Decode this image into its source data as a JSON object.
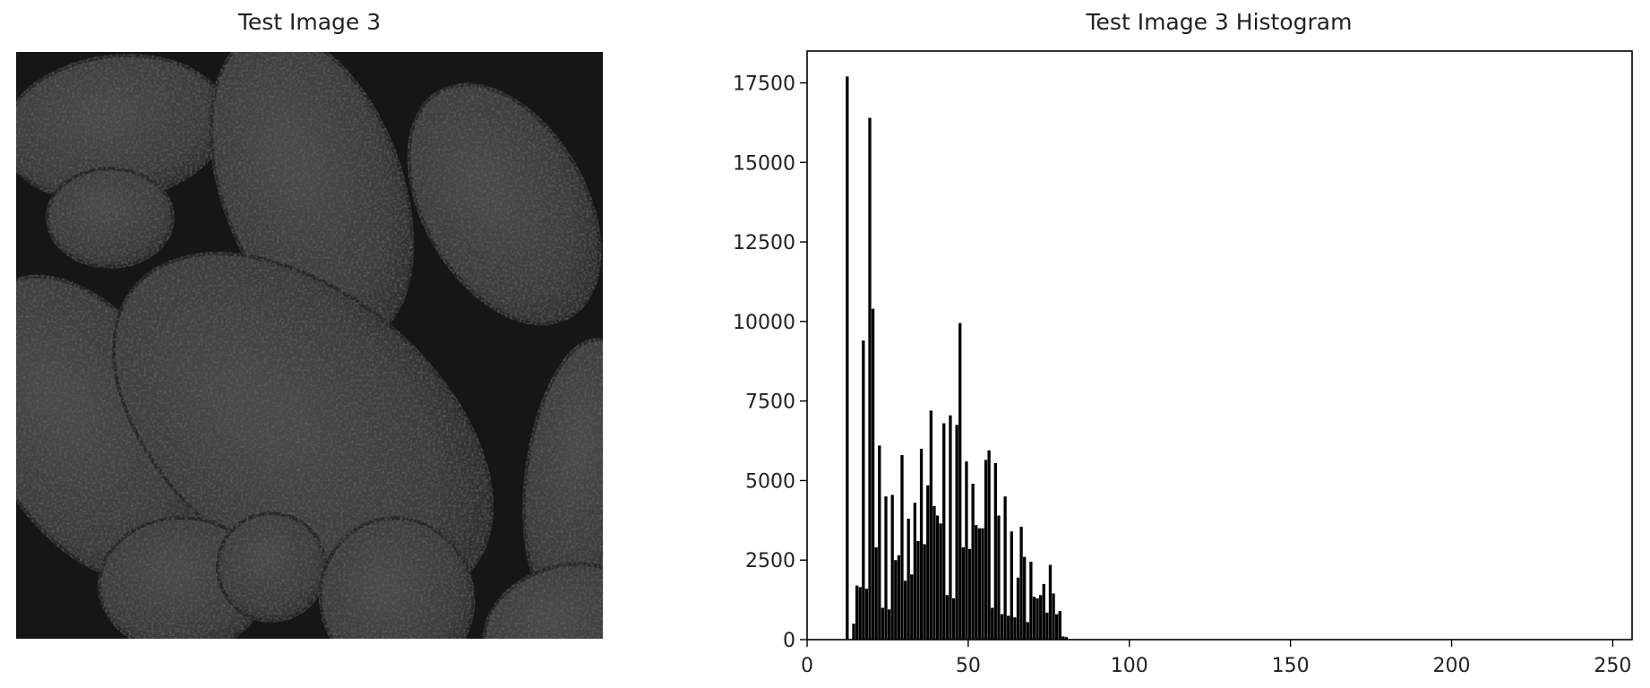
{
  "left_panel": {
    "title": "Test Image 3"
  },
  "chart_data": {
    "type": "bar",
    "title": "Test Image 3 Histogram",
    "xlabel": "",
    "ylabel": "",
    "xlim": [
      0,
      256
    ],
    "ylim": [
      0,
      18500
    ],
    "xticks": [
      0,
      50,
      100,
      150,
      200,
      250
    ],
    "yticks": [
      0,
      2500,
      5000,
      7500,
      10000,
      12500,
      15000,
      17500
    ],
    "grid": false,
    "bar_color": "#000000",
    "bins": [
      {
        "x": 12,
        "y": 17700
      },
      {
        "x": 14,
        "y": 500
      },
      {
        "x": 15,
        "y": 1700
      },
      {
        "x": 16,
        "y": 1650
      },
      {
        "x": 17,
        "y": 9400
      },
      {
        "x": 18,
        "y": 1600
      },
      {
        "x": 19,
        "y": 16400
      },
      {
        "x": 20,
        "y": 10400
      },
      {
        "x": 21,
        "y": 2900
      },
      {
        "x": 22,
        "y": 6100
      },
      {
        "x": 23,
        "y": 1000
      },
      {
        "x": 24,
        "y": 4500
      },
      {
        "x": 25,
        "y": 950
      },
      {
        "x": 26,
        "y": 4550
      },
      {
        "x": 27,
        "y": 2500
      },
      {
        "x": 28,
        "y": 2650
      },
      {
        "x": 29,
        "y": 5800
      },
      {
        "x": 30,
        "y": 1850
      },
      {
        "x": 31,
        "y": 3800
      },
      {
        "x": 32,
        "y": 2050
      },
      {
        "x": 33,
        "y": 4300
      },
      {
        "x": 34,
        "y": 3100
      },
      {
        "x": 35,
        "y": 6000
      },
      {
        "x": 36,
        "y": 3000
      },
      {
        "x": 37,
        "y": 4850
      },
      {
        "x": 38,
        "y": 7200
      },
      {
        "x": 39,
        "y": 4200
      },
      {
        "x": 40,
        "y": 3900
      },
      {
        "x": 41,
        "y": 3650
      },
      {
        "x": 42,
        "y": 6800
      },
      {
        "x": 43,
        "y": 1400
      },
      {
        "x": 44,
        "y": 7050
      },
      {
        "x": 45,
        "y": 1300
      },
      {
        "x": 46,
        "y": 6750
      },
      {
        "x": 47,
        "y": 9950
      },
      {
        "x": 48,
        "y": 2900
      },
      {
        "x": 49,
        "y": 5600
      },
      {
        "x": 50,
        "y": 2850
      },
      {
        "x": 51,
        "y": 4900
      },
      {
        "x": 52,
        "y": 3600
      },
      {
        "x": 53,
        "y": 3500
      },
      {
        "x": 54,
        "y": 3500
      },
      {
        "x": 55,
        "y": 5650
      },
      {
        "x": 56,
        "y": 5950
      },
      {
        "x": 57,
        "y": 1000
      },
      {
        "x": 58,
        "y": 5550
      },
      {
        "x": 59,
        "y": 3900
      },
      {
        "x": 60,
        "y": 800
      },
      {
        "x": 61,
        "y": 4500
      },
      {
        "x": 62,
        "y": 750
      },
      {
        "x": 63,
        "y": 3400
      },
      {
        "x": 64,
        "y": 700
      },
      {
        "x": 65,
        "y": 1950
      },
      {
        "x": 66,
        "y": 3550
      },
      {
        "x": 67,
        "y": 2600
      },
      {
        "x": 68,
        "y": 550
      },
      {
        "x": 69,
        "y": 2450
      },
      {
        "x": 70,
        "y": 1350
      },
      {
        "x": 71,
        "y": 1300
      },
      {
        "x": 72,
        "y": 1400
      },
      {
        "x": 73,
        "y": 1750
      },
      {
        "x": 74,
        "y": 850
      },
      {
        "x": 75,
        "y": 2350
      },
      {
        "x": 76,
        "y": 1450
      },
      {
        "x": 77,
        "y": 800
      },
      {
        "x": 78,
        "y": 900
      },
      {
        "x": 79,
        "y": 100
      },
      {
        "x": 80,
        "y": 80
      }
    ]
  }
}
